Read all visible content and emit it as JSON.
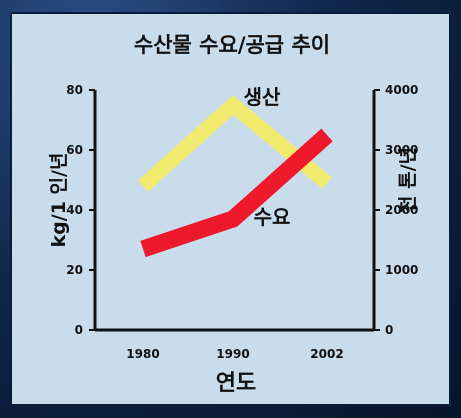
{
  "chart_data": {
    "type": "line",
    "title": "수산물 수요/공급 추이",
    "xlabel": "연도",
    "ylabel_left": "kg/1 인/년",
    "ylabel_right": "천 톤/년",
    "categories": [
      "1980",
      "1990",
      "2002"
    ],
    "ylim_left": [
      0,
      80
    ],
    "ylim_right": [
      0,
      4000
    ],
    "yticks_left": [
      "0",
      "20",
      "40",
      "60",
      "80"
    ],
    "yticks_right": [
      "0",
      "1000",
      "2000",
      "3000",
      "4000"
    ],
    "grid": false,
    "series": [
      {
        "name": "생산",
        "axis": "left",
        "values": [
          48,
          75,
          49
        ],
        "color": "#f2ea6e"
      },
      {
        "name": "수요",
        "axis": "left",
        "values": [
          27,
          37,
          65
        ],
        "color": "#ee1a2c"
      }
    ]
  }
}
